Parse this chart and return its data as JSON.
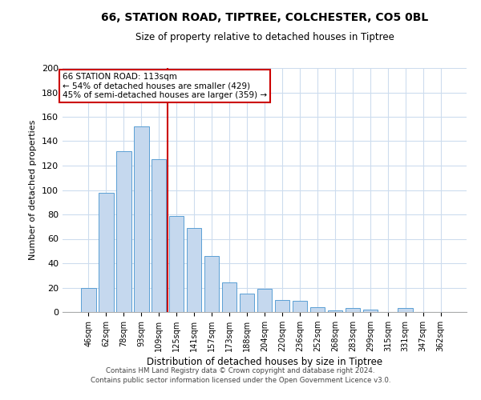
{
  "title": "66, STATION ROAD, TIPTREE, COLCHESTER, CO5 0BL",
  "subtitle": "Size of property relative to detached houses in Tiptree",
  "xlabel": "Distribution of detached houses by size in Tiptree",
  "ylabel": "Number of detached properties",
  "categories": [
    "46sqm",
    "62sqm",
    "78sqm",
    "93sqm",
    "109sqm",
    "125sqm",
    "141sqm",
    "157sqm",
    "173sqm",
    "188sqm",
    "204sqm",
    "220sqm",
    "236sqm",
    "252sqm",
    "268sqm",
    "283sqm",
    "299sqm",
    "315sqm",
    "331sqm",
    "347sqm",
    "362sqm"
  ],
  "values": [
    20,
    98,
    132,
    152,
    125,
    79,
    69,
    46,
    24,
    15,
    19,
    10,
    9,
    4,
    1,
    3,
    2,
    0,
    3,
    0,
    0
  ],
  "bar_color": "#c5d8ee",
  "bar_edge_color": "#5a9fd4",
  "vline_x": 4.5,
  "vline_color": "#cc0000",
  "annotation_title": "66 STATION ROAD: 113sqm",
  "annotation_line1": "← 54% of detached houses are smaller (429)",
  "annotation_line2": "45% of semi-detached houses are larger (359) →",
  "annotation_box_color": "#ffffff",
  "annotation_box_edge": "#cc0000",
  "ylim": [
    0,
    200
  ],
  "yticks": [
    0,
    20,
    40,
    60,
    80,
    100,
    120,
    140,
    160,
    180,
    200
  ],
  "footer_line1": "Contains HM Land Registry data © Crown copyright and database right 2024.",
  "footer_line2": "Contains public sector information licensed under the Open Government Licence v3.0.",
  "bg_color": "#ffffff",
  "grid_color": "#cddcee"
}
